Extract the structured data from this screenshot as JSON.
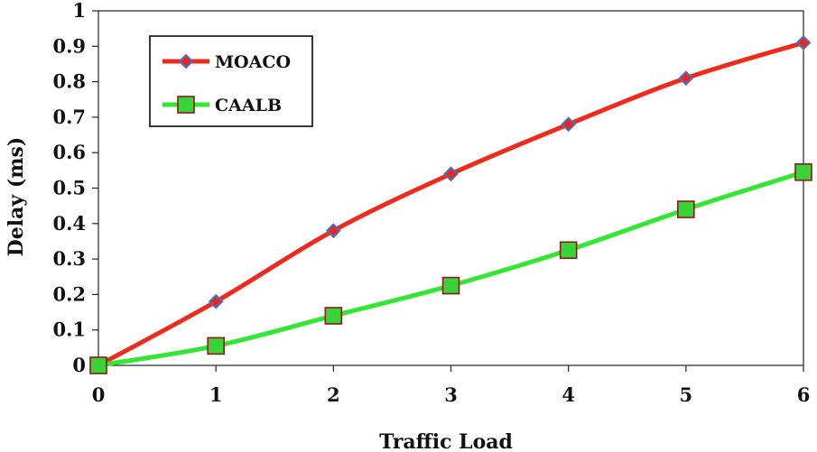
{
  "chart_data": {
    "type": "line",
    "title": "",
    "xlabel": "Traffic Load",
    "ylabel": "Delay  (ms)",
    "x": [
      0,
      1,
      2,
      3,
      4,
      5,
      6
    ],
    "xlim": [
      0,
      6
    ],
    "ylim": [
      0,
      1
    ],
    "xticks": [
      "0",
      "1",
      "2",
      "3",
      "4",
      "5",
      "6"
    ],
    "yticks": [
      "0",
      "0.1",
      "0.2",
      "0.3",
      "0.4",
      "0.5",
      "0.6",
      "0.7",
      "0.8",
      "0.9",
      "1"
    ],
    "grid": false,
    "legend_position": "top-left",
    "series": [
      {
        "name": "MOACO",
        "values": [
          0,
          0.18,
          0.38,
          0.54,
          0.68,
          0.81,
          0.91
        ],
        "line_color": "#ee2a1c",
        "marker": "diamond",
        "marker_fill": "#e8261e",
        "marker_stroke": "#4a6fc2"
      },
      {
        "name": "CAALB",
        "values": [
          0,
          0.055,
          0.14,
          0.225,
          0.325,
          0.44,
          0.545
        ],
        "line_color": "#33e633",
        "marker": "square",
        "marker_fill": "#3ad43a",
        "marker_stroke": "#8b1a1a"
      }
    ]
  }
}
